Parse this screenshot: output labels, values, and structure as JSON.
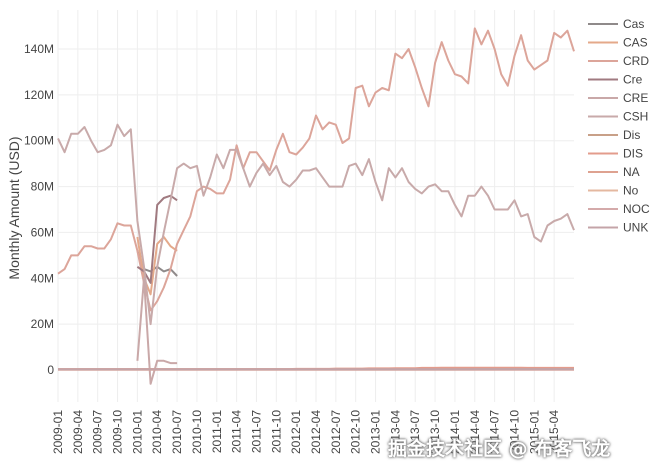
{
  "chart_data": {
    "type": "line",
    "ylabel": "Monthly Amount (USD)",
    "xlabel": "",
    "ylim": [
      -15,
      158
    ],
    "y_ticks": [
      0,
      20,
      40,
      60,
      80,
      100,
      120,
      140
    ],
    "y_tick_labels": [
      "0",
      "20M",
      "40M",
      "60M",
      "80M",
      "100M",
      "120M",
      "140M"
    ],
    "x_range": [
      "2009-01",
      "2015-07"
    ],
    "x_tick_labels": [
      "2009-01",
      "2009-04",
      "2009-07",
      "2009-10",
      "2010-01",
      "2010-04",
      "2010-07",
      "2010-10",
      "2011-01",
      "2011-04",
      "2011-07",
      "2011-10",
      "2012-01",
      "2012-04",
      "2012-07",
      "2012-10",
      "2013-01",
      "2013-04",
      "2013-07",
      "2013-10",
      "2014-01",
      "2014-04",
      "2014-07",
      "2014-10",
      "2015-01",
      "2015-04"
    ],
    "grid": true,
    "legend_position": "right",
    "series": [
      {
        "name": "Cas",
        "color": "#8f8a8a",
        "start": "2010-01",
        "values": [
          52,
          44,
          43,
          45,
          43,
          44,
          41
        ]
      },
      {
        "name": "CAS",
        "color": "#e4a98a",
        "start": "2010-01",
        "values": [
          58,
          40,
          33,
          55,
          58,
          54,
          52
        ]
      },
      {
        "name": "CRD",
        "color": "#dca59a",
        "start": "2009-01",
        "values": [
          42,
          44,
          50,
          50,
          54,
          54,
          53,
          53,
          57,
          64,
          63,
          63,
          52,
          38,
          26,
          30,
          36,
          44,
          55,
          61,
          67,
          78,
          80,
          79,
          77,
          77,
          83,
          98,
          88,
          95,
          95,
          91,
          87,
          96,
          103,
          95,
          94,
          97,
          101,
          111,
          105,
          108,
          107,
          99,
          101,
          123,
          124,
          115,
          121,
          123,
          122,
          138,
          136,
          140,
          132,
          123,
          115,
          134,
          143,
          135,
          129,
          128,
          125,
          149,
          142,
          148,
          140,
          129,
          124,
          137,
          146,
          135,
          131,
          133,
          135,
          147,
          145,
          148,
          139
        ]
      },
      {
        "name": "Cre",
        "color": "#a07a80",
        "start": "2010-01",
        "values": [
          45,
          43,
          38,
          72,
          75,
          76,
          74
        ]
      },
      {
        "name": "CRE",
        "color": "#c9a8a8",
        "start": "2010-01",
        "values": [
          4,
          40,
          -6,
          4,
          4,
          3,
          3
        ]
      },
      {
        "name": "CSH",
        "color": "#c8aaaa",
        "start": "2009-01",
        "values": [
          101,
          95,
          103,
          103,
          106,
          100,
          95,
          96,
          98,
          107,
          102,
          105,
          65,
          45,
          20,
          45,
          60,
          74,
          88,
          90,
          88,
          89,
          76,
          84,
          94,
          88,
          96,
          96,
          88,
          80,
          86,
          90,
          85,
          89,
          82,
          80,
          83,
          87,
          87,
          88,
          84,
          80,
          80,
          80,
          89,
          90,
          85,
          92,
          82,
          74,
          88,
          84,
          88,
          82,
          79,
          77,
          80,
          81,
          78,
          78,
          72,
          67,
          76,
          76,
          80,
          76,
          70,
          70,
          70,
          74,
          67,
          68,
          58,
          56,
          63,
          65,
          66,
          68,
          61
        ]
      },
      {
        "name": "Dis",
        "color": "#c8a088",
        "start": "2009-01",
        "values": [
          0.3,
          0.3,
          0.3,
          0.3,
          0.3,
          0.3,
          0.3,
          0.3,
          0.3,
          0.3,
          0.3,
          0.3,
          0.3,
          0.3,
          0.3,
          0.3,
          0.3,
          0.3,
          0.3,
          0.3,
          0.3,
          0.3,
          0.3,
          0.3,
          0.3,
          0.3,
          0.3,
          0.3,
          0.3,
          0.3,
          0.3,
          0.3,
          0.3,
          0.3,
          0.3,
          0.3,
          0.3,
          0.3,
          0.3,
          0.3,
          0.3,
          0.3,
          0.3,
          0.3,
          0.3,
          0.3,
          0.3,
          0.3,
          0.3,
          0.3,
          0.3,
          0.3,
          0.3,
          0.3,
          0.3,
          0.3,
          0.3,
          0.3,
          0.3,
          0.3,
          0.3,
          0.3,
          0.3,
          0.3,
          0.3,
          0.3,
          0.3,
          0.3,
          0.3,
          0.3,
          0.3,
          0.3,
          0.3,
          0.3,
          0.3,
          0.3,
          0.3,
          0.3,
          0.3
        ]
      },
      {
        "name": "DIS",
        "color": "#e39c8c",
        "start": "2009-01",
        "values": [
          0.4,
          0.4,
          0.4,
          0.4,
          0.4,
          0.4,
          0.4,
          0.4,
          0.4,
          0.4,
          0.4,
          0.4,
          0.4,
          0.4,
          0.4,
          0.4,
          0.4,
          0.4,
          0.4,
          0.4,
          0.4,
          0.4,
          0.4,
          0.4,
          0.4,
          0.4,
          0.4,
          0.4,
          0.4,
          0.4,
          0.4,
          0.4,
          0.4,
          0.4,
          0.4,
          0.4,
          0.5,
          0.5,
          0.5,
          0.5,
          0.5,
          0.5,
          0.6,
          0.6,
          0.6,
          0.6,
          0.6,
          0.7,
          0.7,
          0.7,
          0.7,
          0.8,
          0.8,
          0.8,
          0.8,
          0.9,
          0.9,
          0.9,
          1.0,
          1.0,
          1.0,
          1.0,
          1.0,
          1.0,
          1.0,
          1.0,
          1.0,
          1.0,
          1.0,
          1.0,
          1.0,
          0.9,
          0.9,
          0.9,
          0.9,
          0.9,
          0.9,
          0.9,
          0.9
        ]
      },
      {
        "name": "NA",
        "color": "#dea290",
        "start": "2009-01",
        "values": [
          0.1,
          0.1,
          0.1,
          0.1,
          0.1,
          0.1,
          0.1,
          0.1,
          0.1,
          0.1,
          0.1,
          0.1,
          0.1,
          0.1,
          0.1,
          0.1,
          0.1,
          0.1,
          0.1,
          0.1,
          0.1,
          0.1,
          0.1,
          0.1,
          0.1,
          0.1,
          0.1,
          0.1,
          0.1,
          0.1,
          0.1,
          0.1,
          0.1,
          0.1,
          0.1,
          0.1,
          0.1,
          0.1,
          0.1,
          0.1,
          0.1,
          0.1,
          0.1,
          0.1,
          0.1,
          0.1,
          0.1,
          0.1,
          0.1,
          0.1,
          0.1,
          0.1,
          0.1,
          0.1,
          0.1,
          0.1,
          0.1,
          0.1,
          0.1,
          0.1,
          0.1,
          0.1,
          0.1,
          0.1,
          0.1,
          0.1,
          0.1,
          0.1,
          0.1,
          0.1,
          0.1,
          0.1,
          0.1,
          0.1,
          0.1,
          0.1,
          0.1,
          0.1,
          0.1
        ]
      },
      {
        "name": "No",
        "color": "#e4b8a0",
        "start": "2009-01",
        "values": [
          0.2,
          0.2,
          0.2,
          0.2,
          0.2,
          0.2,
          0.2,
          0.2,
          0.2,
          0.2,
          0.2,
          0.2,
          0.2,
          0.2,
          0.2,
          0.2,
          0.2,
          0.2,
          0.2,
          0.2,
          0.2,
          0.2,
          0.2,
          0.2,
          0.2,
          0.2,
          0.2,
          0.2,
          0.2,
          0.2,
          0.2,
          0.2,
          0.2,
          0.2,
          0.2,
          0.2,
          0.2,
          0.2,
          0.2,
          0.2,
          0.2,
          0.2,
          0.2,
          0.2,
          0.2,
          0.2,
          0.2,
          0.2,
          0.2,
          0.2,
          0.2,
          0.2,
          0.2,
          0.2,
          0.2,
          0.2,
          0.2,
          0.2,
          0.2,
          0.2,
          0.2,
          0.2,
          0.2,
          0.2,
          0.2,
          0.2,
          0.2,
          0.2,
          0.2,
          0.2,
          0.2,
          0.2,
          0.2,
          0.2,
          0.2,
          0.2,
          0.2,
          0.2,
          0.2
        ]
      },
      {
        "name": "NOC",
        "color": "#d4aaaa",
        "start": "2009-01",
        "values": [
          0.2,
          0.2,
          0.2,
          0.2,
          0.2,
          0.2,
          0.2,
          0.2,
          0.2,
          0.2,
          0.2,
          0.2,
          0.2,
          0.2,
          0.2,
          0.2,
          0.2,
          0.2,
          0.2,
          0.2,
          0.2,
          0.2,
          0.2,
          0.2,
          0.2,
          0.2,
          0.2,
          0.2,
          0.2,
          0.2,
          0.2,
          0.2,
          0.2,
          0.2,
          0.2,
          0.2,
          0.2,
          0.2,
          0.2,
          0.2,
          0.2,
          0.2,
          0.2,
          0.2,
          0.2,
          0.2,
          0.2,
          0.2,
          0.2,
          0.2,
          0.2,
          0.2,
          0.2,
          0.2,
          0.2,
          0.2,
          0.2,
          0.2,
          0.2,
          0.2,
          0.2,
          0.2,
          0.2,
          0.2,
          0.2,
          0.2,
          0.2,
          0.2,
          0.2,
          0.2,
          0.2,
          0.2,
          0.2,
          0.2,
          0.2,
          0.2,
          0.2,
          0.2,
          0.2
        ]
      },
      {
        "name": "UNK",
        "color": "#c4a4a8",
        "start": "2009-01",
        "values": [
          0.3,
          0.3,
          0.3,
          0.3,
          0.3,
          0.3,
          0.3,
          0.3,
          0.3,
          0.3,
          0.3,
          0.3,
          0.3,
          0.3,
          0.3,
          0.3,
          0.3,
          0.3,
          0.3,
          0.3,
          0.3,
          0.3,
          0.3,
          0.3,
          0.3,
          0.3,
          0.3,
          0.3,
          0.3,
          0.3,
          0.3,
          0.3,
          0.3,
          0.3,
          0.3,
          0.3,
          0.3,
          0.3,
          0.3,
          0.3,
          0.3,
          0.3,
          0.3,
          0.3,
          0.3,
          0.3,
          0.3,
          0.3,
          0.3,
          0.3,
          0.3,
          0.3,
          0.3,
          0.3,
          0.3,
          0.3,
          0.3,
          0.3,
          0.3,
          0.3,
          0.3,
          0.3,
          0.3,
          0.4,
          0.4,
          0.4,
          0.4,
          0.4,
          0.4,
          0.4,
          0.4,
          0.4,
          0.4,
          0.4,
          0.4,
          0.4,
          0.4,
          0.4,
          0.4
        ]
      }
    ]
  },
  "watermark": "掘金技术社区 @ 布客飞龙"
}
